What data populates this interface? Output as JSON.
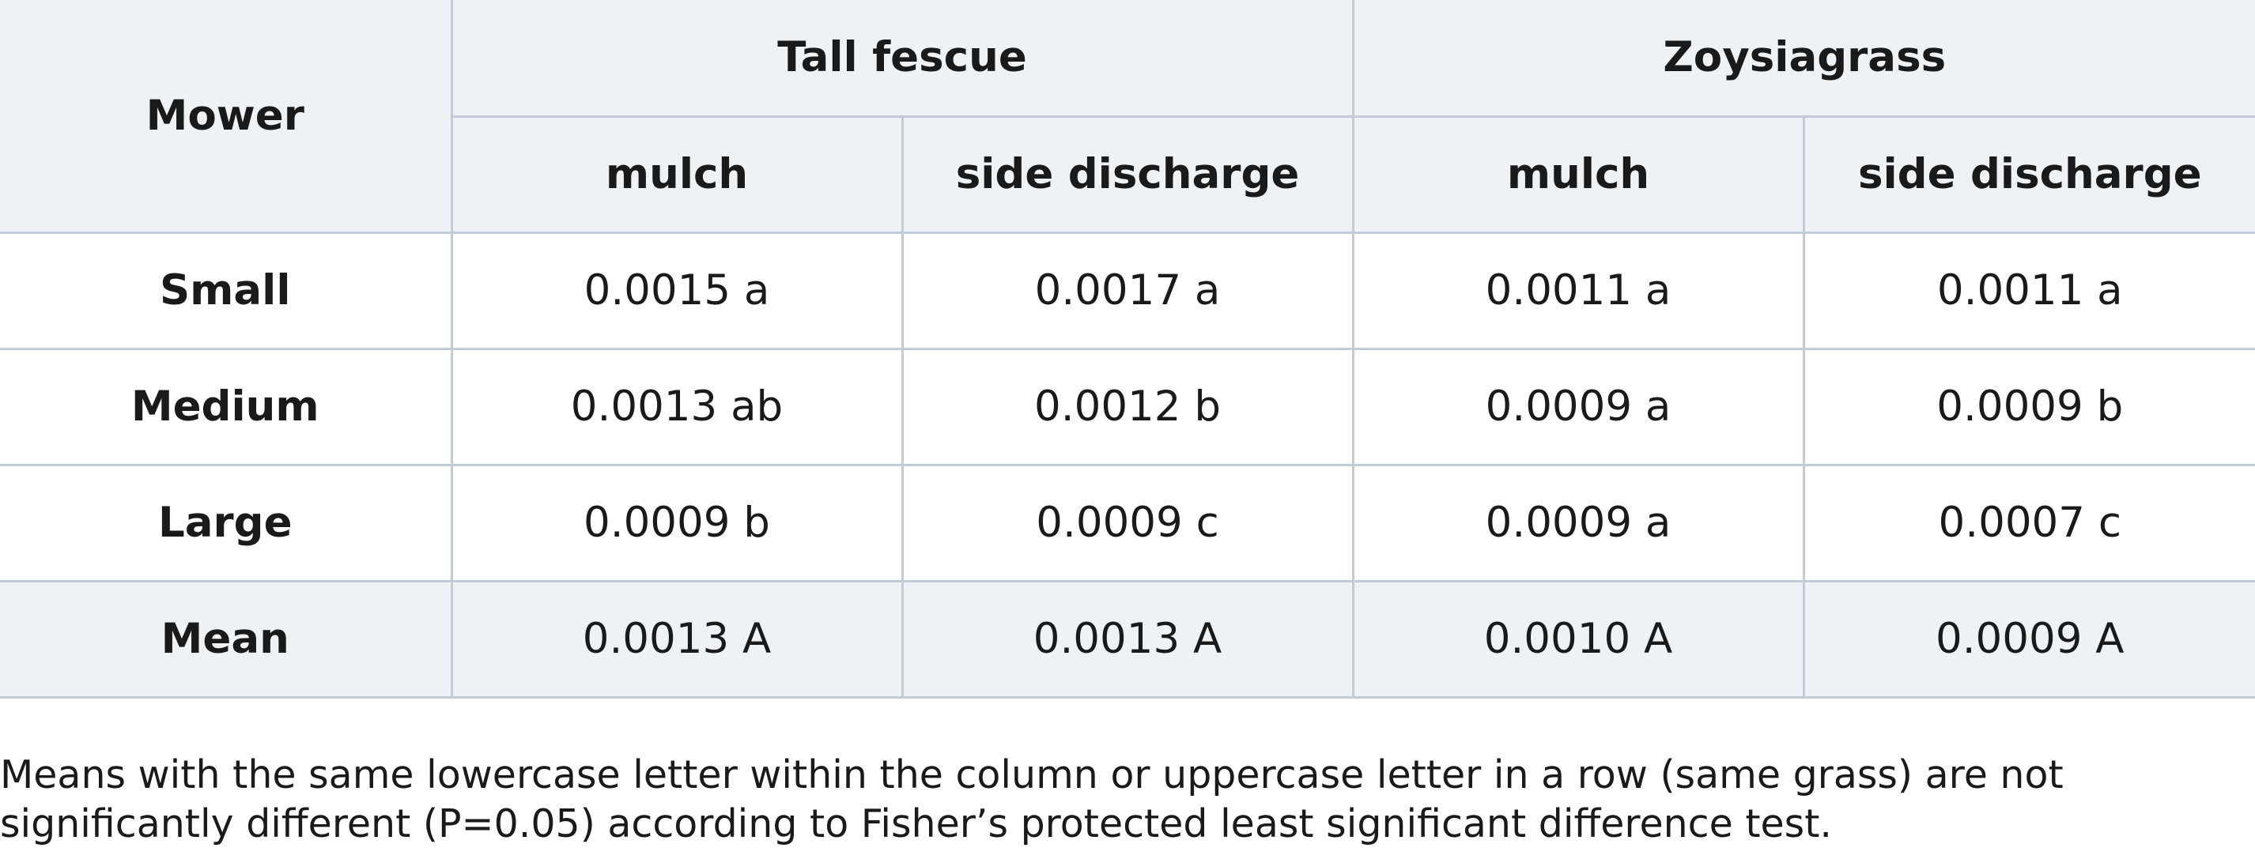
{
  "header": {
    "mower_label": "Mower",
    "groups": [
      {
        "label": "Tall fescue"
      },
      {
        "label": "Zoysiagrass"
      }
    ],
    "subcolumns": [
      "mulch",
      "side discharge",
      "mulch",
      "side discharge"
    ]
  },
  "rows": [
    {
      "label": "Small",
      "cells": [
        "0.0015 a",
        "0.0017 a",
        "0.0011 a",
        "0.0011 a"
      ]
    },
    {
      "label": "Medium",
      "cells": [
        "0.0013 ab",
        "0.0012 b",
        "0.0009 a",
        "0.0009 b"
      ]
    },
    {
      "label": "Large",
      "cells": [
        "0.0009 b",
        "0.0009 c",
        "0.0009 a",
        "0.0007 c"
      ]
    },
    {
      "label": "Mean",
      "cells": [
        "0.0013 A",
        "0.0013 A",
        "0.0010 A",
        "0.0009 A"
      ]
    }
  ],
  "footnote": {
    "line1": "Means with the same lowercase letter within the column or uppercase letter in a row (same grass) are not",
    "line2": "significantly different (P=0.05) according to Fisher’s protected least significant difference test."
  },
  "colors": {
    "header_bg": "#eef2f5",
    "border": "#c3cbd6",
    "text": "#1a1a1a"
  }
}
